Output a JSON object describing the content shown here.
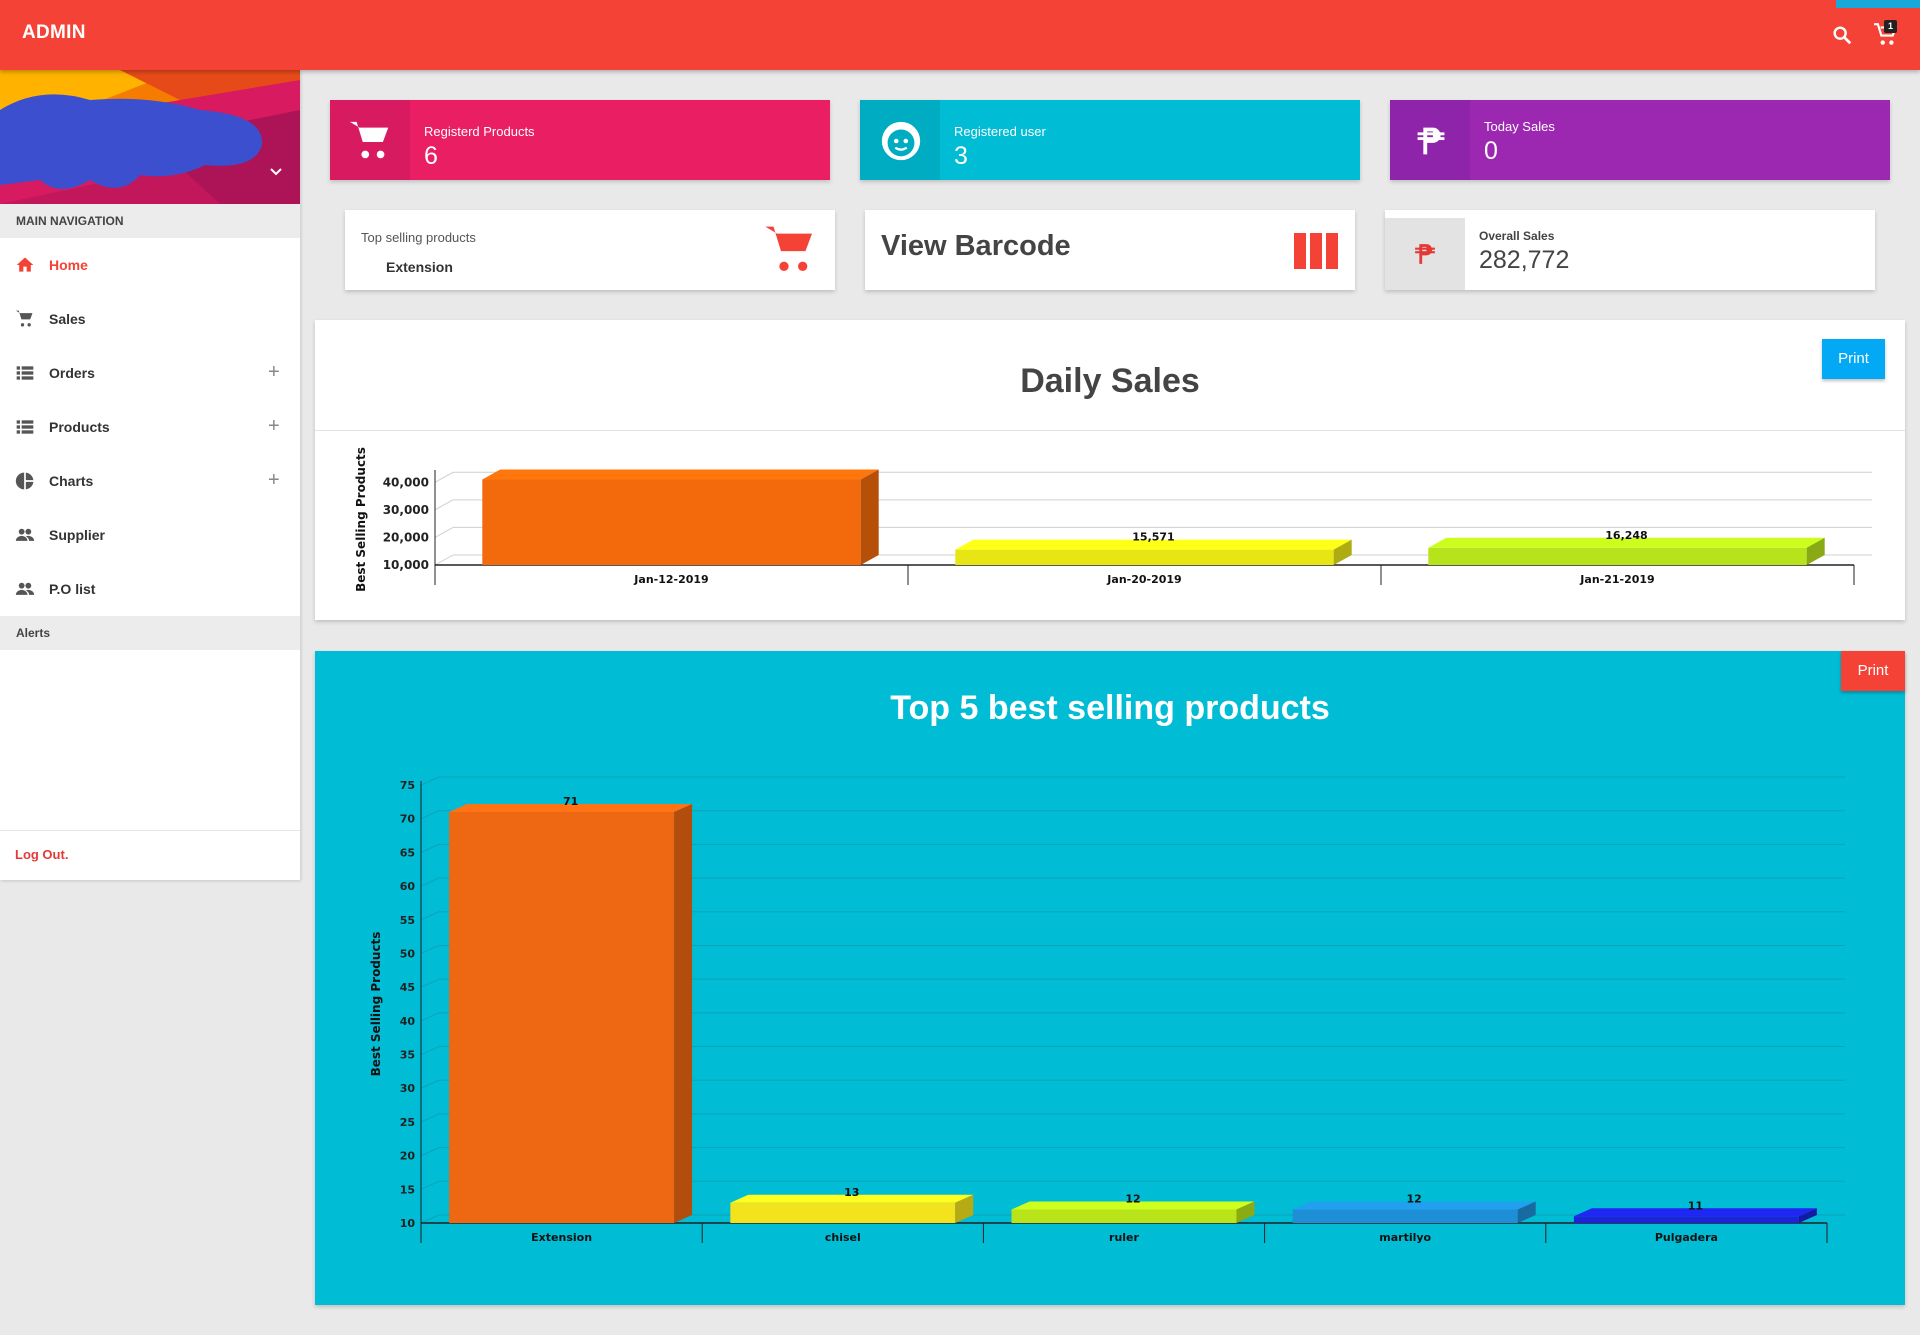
{
  "app": {
    "brand": "ADMIN",
    "cart_count": "1"
  },
  "sidebar": {
    "section_title": "MAIN NAVIGATION",
    "items": [
      {
        "label": "Home",
        "icon": "home-icon",
        "active": true,
        "expandable": false
      },
      {
        "label": "Sales",
        "icon": "cart-icon",
        "active": false,
        "expandable": false
      },
      {
        "label": "Orders",
        "icon": "list-icon",
        "active": false,
        "expandable": true
      },
      {
        "label": "Products",
        "icon": "list-icon",
        "active": false,
        "expandable": true
      },
      {
        "label": "Charts",
        "icon": "pie-chart-icon",
        "active": false,
        "expandable": true
      },
      {
        "label": "Supplier",
        "icon": "people-icon",
        "active": false,
        "expandable": false
      },
      {
        "label": "P.O list",
        "icon": "people-icon",
        "active": false,
        "expandable": false
      }
    ],
    "alerts_title": "Alerts",
    "logout": "Log Out."
  },
  "stats": {
    "registered_products": {
      "label": "Registerd Products",
      "value": "6",
      "color": "#e91e63"
    },
    "registered_user": {
      "label": "Registered user",
      "value": "3",
      "color": "#00bcd4"
    },
    "today_sales": {
      "label": "Today Sales",
      "value": "0",
      "color": "#9c27b0"
    }
  },
  "top_selling": {
    "label": "Top selling products",
    "value": "Extension"
  },
  "barcode": {
    "label": "View Barcode"
  },
  "overall_sales": {
    "label": "Overall Sales",
    "value": "282,772"
  },
  "chart_data": [
    {
      "type": "bar",
      "title": "Daily Sales",
      "ylabel": "Best Selling Products",
      "categories": [
        "Jan-12-2019",
        "Jan-20-2019",
        "Jan-21-2019"
      ],
      "values": [
        41000,
        15571,
        16248
      ],
      "data_labels": [
        "",
        "15,571",
        "16,248"
      ],
      "yticks": [
        "10,000",
        "20,000",
        "30,000",
        "40,000"
      ],
      "ylim": [
        10000,
        43000
      ],
      "colors": [
        "#f26a0b",
        "#e8e515",
        "#b6e31a"
      ],
      "print_label": "Print"
    },
    {
      "type": "bar",
      "title": "Top 5 best selling products",
      "ylabel": "Best Selling Products",
      "categories": [
        "Extension",
        "chisel",
        "ruler",
        "martilyo",
        "Pulgadera"
      ],
      "values": [
        71,
        13,
        12,
        12,
        11
      ],
      "yticks": [
        "10",
        "15",
        "20",
        "25",
        "30",
        "35",
        "40",
        "45",
        "50",
        "55",
        "60",
        "65",
        "70",
        "75"
      ],
      "ylim": [
        10,
        75
      ],
      "colors": [
        "#ee6712",
        "#f2e31c",
        "#b9e41a",
        "#1e8fd6",
        "#1c23d9"
      ],
      "print_label": "Print"
    }
  ]
}
